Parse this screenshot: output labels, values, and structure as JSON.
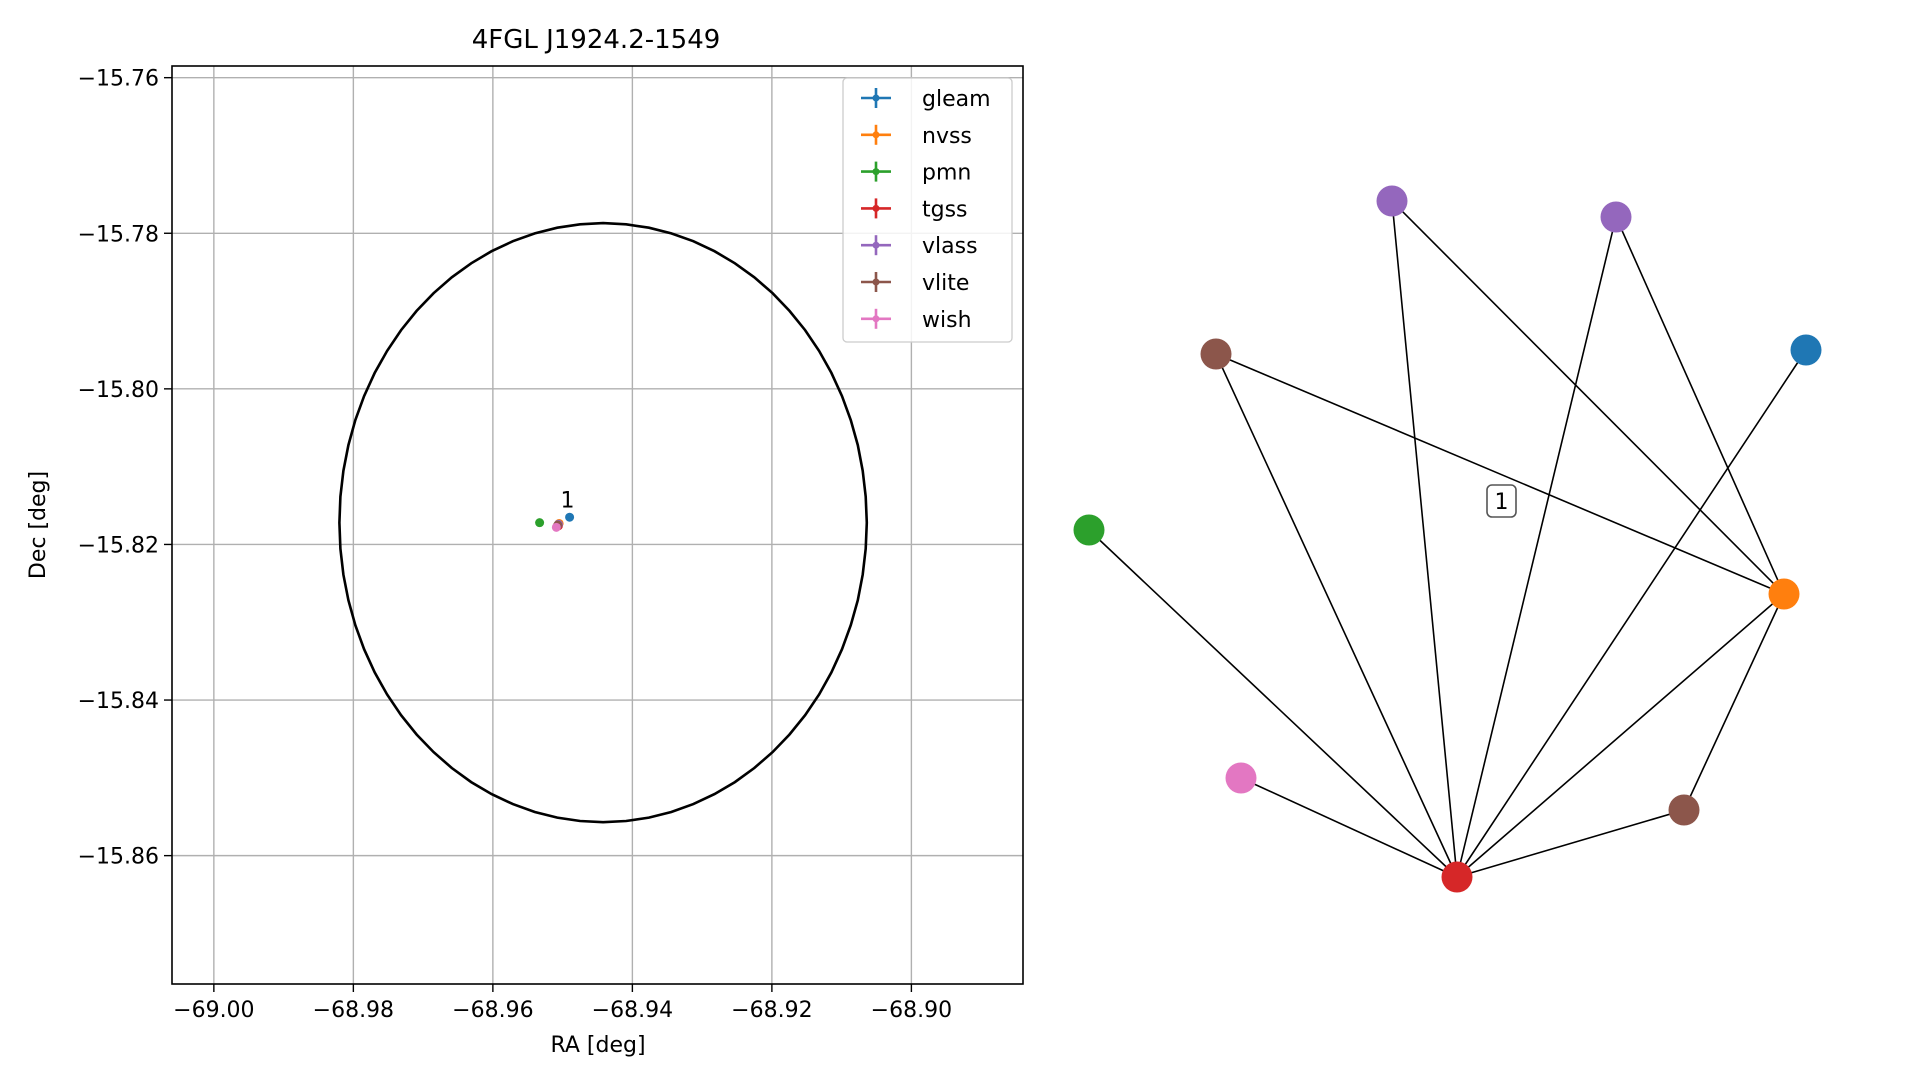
{
  "chart_data": [
    {
      "type": "scatter",
      "title": "4FGL J1924.2-1549",
      "xlabel": "RA [deg]",
      "ylabel": "Dec [deg]",
      "xlim": [
        -69.006,
        -68.884
      ],
      "ylim": [
        -15.8765,
        -15.7585
      ],
      "xticks": [
        -69.0,
        -68.98,
        -68.96,
        -68.94,
        -68.92,
        -68.9
      ],
      "xtick_labels": [
        "−69.00",
        "−68.98",
        "−68.96",
        "−68.94",
        "−68.92",
        "−68.90"
      ],
      "yticks": [
        -15.76,
        -15.78,
        -15.8,
        -15.82,
        -15.84,
        -15.86
      ],
      "ytick_labels": [
        "−15.76",
        "−15.78",
        "−15.80",
        "−15.82",
        "−15.84",
        "−15.86"
      ],
      "grid": true,
      "legend_position": "upper right",
      "series": [
        {
          "name": "gleam",
          "color": "#1f77b4",
          "points": [
            [
              -68.949,
              -15.8165
            ]
          ]
        },
        {
          "name": "nvss",
          "color": "#ff7f0e",
          "points": [
            [
              -68.9505,
              -15.8173
            ]
          ]
        },
        {
          "name": "pmn",
          "color": "#2ca02c",
          "points": [
            [
              -68.9533,
              -15.8172
            ]
          ]
        },
        {
          "name": "tgss",
          "color": "#d62728",
          "points": [
            [
              -68.9506,
              -15.8176
            ]
          ]
        },
        {
          "name": "vlass",
          "color": "#9467bd",
          "points": [
            [
              -68.9506,
              -15.8174
            ]
          ]
        },
        {
          "name": "vlite",
          "color": "#8c564b",
          "points": [
            [
              -68.9507,
              -15.8175
            ]
          ]
        },
        {
          "name": "wish",
          "color": "#e377c2",
          "points": [
            [
              -68.9509,
              -15.8178
            ]
          ]
        }
      ],
      "ellipse": {
        "center": [
          -68.9442,
          -15.8172
        ],
        "ra_semi_axis": 0.0378,
        "dec_semi_axis": 0.0385,
        "color": "#000000"
      },
      "annotations": [
        {
          "text": "1",
          "x": -68.9493,
          "y": -15.8155
        }
      ]
    },
    {
      "type": "network",
      "label_box": "1",
      "nodes": [
        {
          "id": "gleam",
          "color": "#1f77b4"
        },
        {
          "id": "nvss",
          "color": "#ff7f0e"
        },
        {
          "id": "pmn",
          "color": "#2ca02c"
        },
        {
          "id": "tgss",
          "color": "#d62728"
        },
        {
          "id": "vlass1",
          "color": "#9467bd"
        },
        {
          "id": "vlass2",
          "color": "#9467bd"
        },
        {
          "id": "vlite1",
          "color": "#8c564b"
        },
        {
          "id": "vlite2",
          "color": "#8c564b"
        },
        {
          "id": "wish",
          "color": "#e377c2"
        }
      ],
      "edges": [
        [
          "vlass1",
          "tgss"
        ],
        [
          "vlass1",
          "nvss"
        ],
        [
          "vlass2",
          "tgss"
        ],
        [
          "vlass2",
          "nvss"
        ],
        [
          "vlite1",
          "tgss"
        ],
        [
          "vlite1",
          "nvss"
        ],
        [
          "gleam",
          "tgss"
        ],
        [
          "pmn",
          "tgss"
        ],
        [
          "wish",
          "tgss"
        ],
        [
          "nvss",
          "tgss"
        ],
        [
          "nvss",
          "vlite2"
        ],
        [
          "vlite2",
          "tgss"
        ]
      ]
    }
  ]
}
